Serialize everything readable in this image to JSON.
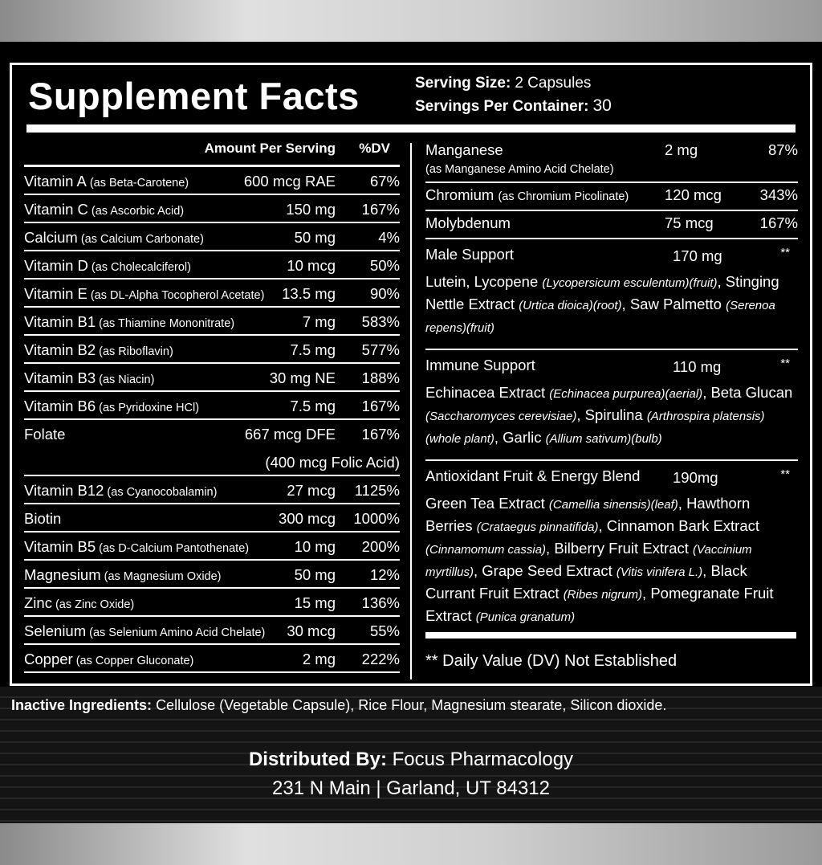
{
  "title": "Supplement Facts",
  "serving": {
    "size_label": "Serving Size:",
    "size": "2 Capsules",
    "per_label": "Servings Per Container:",
    "per": "30"
  },
  "left": {
    "amount_header": "Amount Per Serving",
    "dv_header": "%DV",
    "rows": [
      {
        "name": "Vitamin A",
        "source": "(as Beta-Carotene)",
        "amount": "600 mcg RAE",
        "dv": "67%"
      },
      {
        "name": "Vitamin C",
        "source": "(as Ascorbic Acid)",
        "amount": "150 mg",
        "dv": "167%"
      },
      {
        "name": "Calcium",
        "source": "(as Calcium Carbonate)",
        "amount": "50 mg",
        "dv": "4%"
      },
      {
        "name": "Vitamin D",
        "source": "(as Cholecalciferol)",
        "amount": "10 mcg",
        "dv": "50%"
      },
      {
        "name": "Vitamin E",
        "source": "(as DL-Alpha Tocopherol Acetate)",
        "amount": "13.5 mg",
        "dv": "90%"
      },
      {
        "name": "Vitamin B1",
        "source": "(as Thiamine Mononitrate)",
        "amount": "7 mg",
        "dv": "583%"
      },
      {
        "name": "Vitamin B2",
        "source": "(as Riboflavin)",
        "amount": "7.5 mg",
        "dv": "577%"
      },
      {
        "name": "Vitamin B3",
        "source": "(as Niacin)",
        "amount": "30 mg NE",
        "dv": "188%"
      },
      {
        "name": "Vitamin B6",
        "source": "(as Pyridoxine HCl)",
        "amount": "7.5 mg",
        "dv": "167%"
      },
      {
        "name": "Folate",
        "amount": "667 mcg DFE",
        "amount_note": "(400 mcg Folic Acid)",
        "dv": "167%"
      },
      {
        "name": "Vitamin B12",
        "source": "(as Cyanocobalamin)",
        "amount": "27 mcg",
        "dv": "1125%"
      },
      {
        "name": "Biotin",
        "amount": "300 mcg",
        "dv": "1000%"
      },
      {
        "name": "Vitamin B5",
        "source": "(as D-Calcium Pantothenate)",
        "amount": "10 mg",
        "dv": "200%"
      },
      {
        "name": "Magnesium",
        "source": "(as Magnesium Oxide)",
        "amount": "50 mg",
        "dv": "12%"
      },
      {
        "name": "Zinc",
        "source": "(as Zinc Oxide)",
        "amount": "15 mg",
        "dv": "136%"
      },
      {
        "name": "Selenium",
        "source": "(as Selenium Amino Acid Chelate)",
        "amount": "30 mcg",
        "dv": "55%"
      },
      {
        "name": "Copper",
        "source": "(as Copper Gluconate)",
        "amount": "2 mg",
        "dv": "222%"
      }
    ]
  },
  "right": {
    "rows": [
      {
        "name": "Manganese",
        "source": "(as Manganese Amino Acid Chelate)",
        "amount": "2 mg",
        "dv": "87%"
      },
      {
        "name": "Chromium",
        "source": "(as Chromium Picolinate)",
        "amount": "120 mcg",
        "dv": "343%"
      },
      {
        "name": "Molybdenum",
        "amount": "75 mcg",
        "dv": "167%"
      }
    ],
    "blends": [
      {
        "name": "Male Support",
        "amount": "170 mg",
        "dv": "**",
        "segments": [
          {
            "text": "Lutein, Lycopene ",
            "style": "normal"
          },
          {
            "text": "(Lycopersicum esculentum)(fruit)",
            "style": "italic"
          },
          {
            "text": ", Stinging Nettle Extract ",
            "style": "normal"
          },
          {
            "text": "(Urtica dioica)(root)",
            "style": "italic"
          },
          {
            "text": ", Saw Palmetto ",
            "style": "normal"
          },
          {
            "text": "(Serenoa repens)(fruit)",
            "style": "italic"
          }
        ]
      },
      {
        "name": "Immune Support",
        "amount": "110 mg",
        "dv": "**",
        "segments": [
          {
            "text": "Echinacea Extract ",
            "style": "normal"
          },
          {
            "text": "(Echinacea purpurea)(aerial)",
            "style": "italic"
          },
          {
            "text": ", Beta Glucan ",
            "style": "normal"
          },
          {
            "text": "(Saccharomyces cerevisiae)",
            "style": "italic"
          },
          {
            "text": ", Spirulina ",
            "style": "normal"
          },
          {
            "text": "(Arthrospira platensis)(whole plant)",
            "style": "italic"
          },
          {
            "text": ", Garlic ",
            "style": "normal"
          },
          {
            "text": "(Allium sativum)(bulb)",
            "style": "italic"
          }
        ]
      },
      {
        "name": "Antioxidant Fruit & Energy Blend",
        "amount": "190mg",
        "dv": "**",
        "segments": [
          {
            "text": "Green Tea Extract ",
            "style": "normal"
          },
          {
            "text": "(Camellia sinensis)(leaf)",
            "style": "italic"
          },
          {
            "text": ", Hawthorn Berries ",
            "style": "normal"
          },
          {
            "text": "(Crataegus pinnatifida)",
            "style": "italic"
          },
          {
            "text": ", Cinnamon Bark Extract ",
            "style": "normal"
          },
          {
            "text": "(Cinnamomum cassia)",
            "style": "italic"
          },
          {
            "text": ", Bilberry Fruit Extract ",
            "style": "normal"
          },
          {
            "text": "(Vaccinium myrtillus)",
            "style": "italic"
          },
          {
            "text": ", Grape Seed Extract ",
            "style": "normal"
          },
          {
            "text": "(Vitis vinifera L.)",
            "style": "italic"
          },
          {
            "text": ", Black Currant Fruit Extract ",
            "style": "normal"
          },
          {
            "text": "(Ribes nigrum)",
            "style": "italic"
          },
          {
            "text": ", Pomegranate Fruit Extract ",
            "style": "normal"
          },
          {
            "text": "(Punica granatum)",
            "style": "italic"
          }
        ]
      }
    ],
    "footnote": "** Daily Value (DV) Not Established"
  },
  "inactive": {
    "label": "Inactive Ingredients:",
    "text": "Cellulose (Vegetable Capsule), Rice Flour, Magnesium stearate, Silicon dioxide."
  },
  "distributor": {
    "label": "Distributed By:",
    "name": "Focus Pharmacology",
    "address": "231 N Main | Garland, UT 84312"
  }
}
